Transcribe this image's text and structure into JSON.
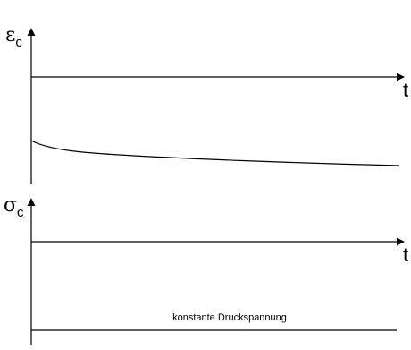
{
  "top_plot": {
    "y_symbol": "ε",
    "y_subscript": "c",
    "x_label": "t",
    "curve_shape": "decaying"
  },
  "bottom_plot": {
    "y_symbol": "σ",
    "y_subscript": "c",
    "x_label": "t",
    "annotation": "konstante Druckspannung"
  },
  "colors": {
    "line": "#000000",
    "background": "#ffffff"
  }
}
